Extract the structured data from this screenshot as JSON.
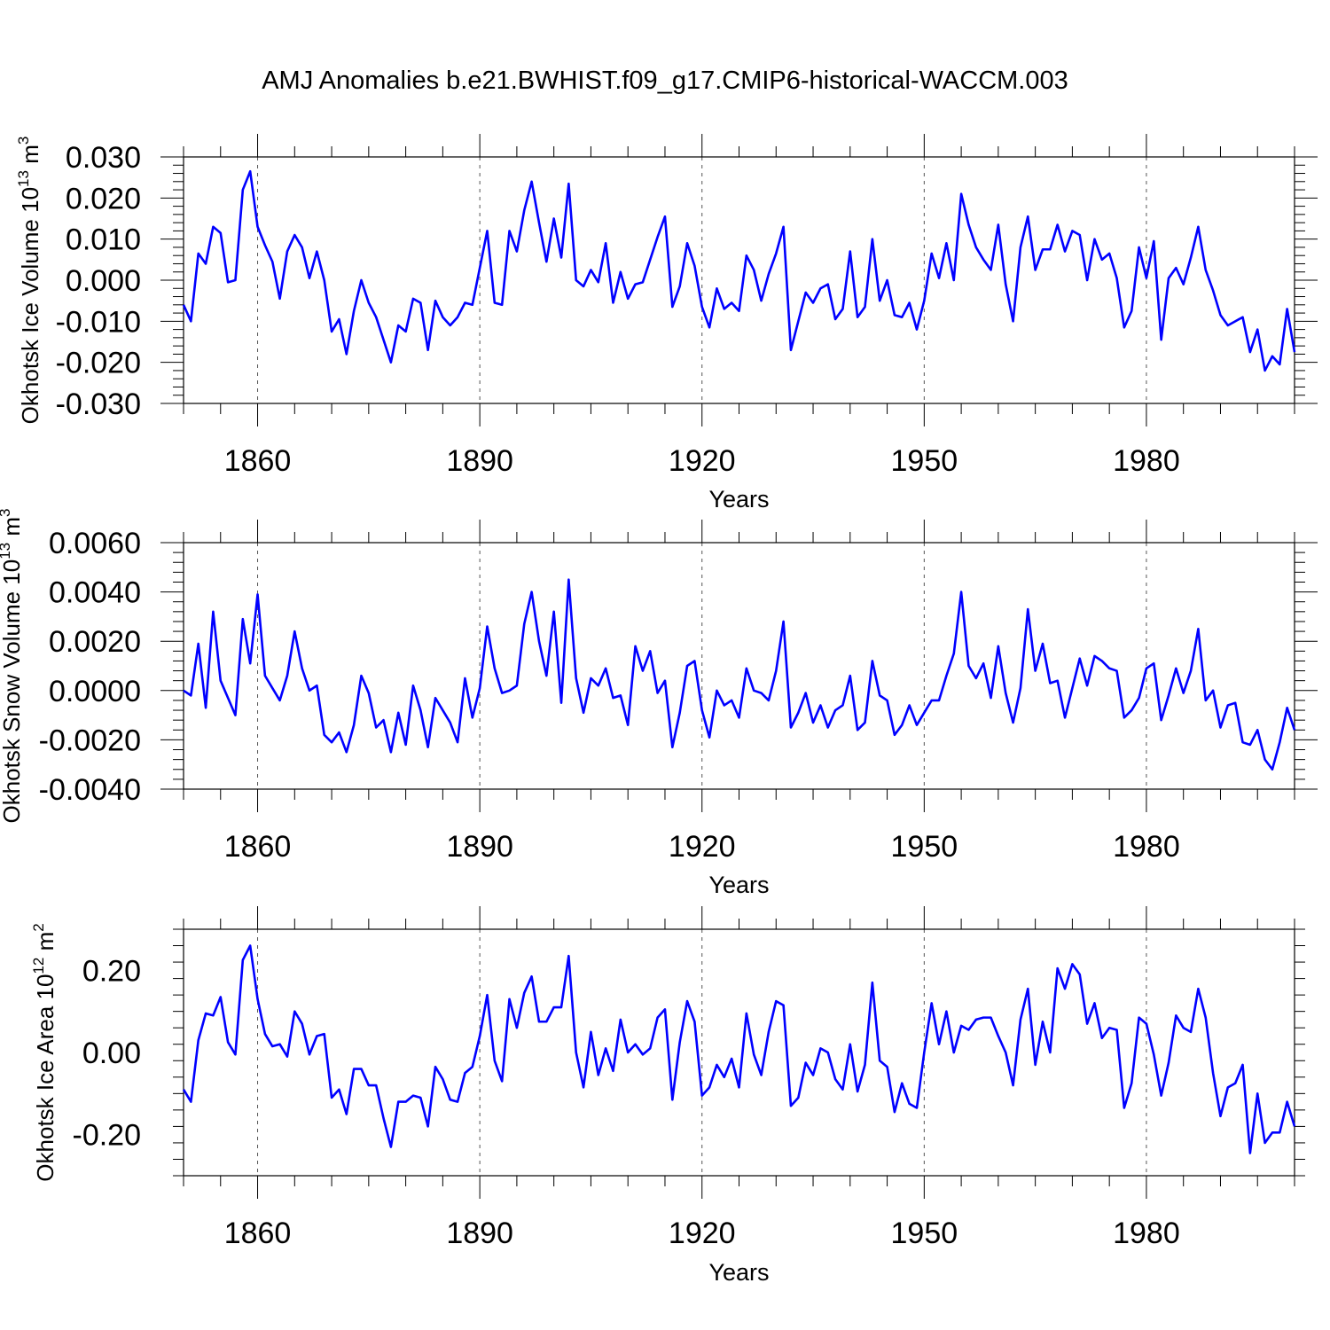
{
  "title": "AMJ Anomalies b.e21.BWHIST.f09_g17.CMIP6-historical-WACCM.003",
  "colors": {
    "line": "#0000ff",
    "axes": "#000000",
    "grid": "#555555"
  },
  "chart_data": [
    {
      "type": "line",
      "ylabel": {
        "text": "Okhotsk Ice Volume 10",
        "exp": "13",
        "unit": "m",
        "unit_exp": "3"
      },
      "xlabel": "Years",
      "xlim": [
        1850,
        2000
      ],
      "xticks": [
        1860,
        1890,
        1920,
        1950,
        1980
      ],
      "xtick_labels": [
        "1860",
        "1890",
        "1920",
        "1950",
        "1980"
      ],
      "xgrid": true,
      "ylim": [
        -0.03,
        0.03
      ],
      "yticks": [
        -0.03,
        -0.02,
        -0.01,
        0.0,
        0.01,
        0.02,
        0.03
      ],
      "ytick_labels": [
        "-0.030",
        "-0.020",
        "-0.010",
        "0.000",
        "0.010",
        "0.020",
        "0.030"
      ],
      "yminor": 0.002,
      "x_start": 1850,
      "values": [
        -0.006,
        -0.01,
        0.0065,
        0.004,
        0.013,
        0.0115,
        -0.0005,
        0.0,
        0.022,
        0.0265,
        0.013,
        0.0085,
        0.0045,
        -0.0045,
        0.007,
        0.011,
        0.008,
        0.0005,
        0.007,
        0.0,
        -0.0125,
        -0.0095,
        -0.018,
        -0.0075,
        0.0,
        -0.0055,
        -0.009,
        -0.0145,
        -0.02,
        -0.011,
        -0.0125,
        -0.0045,
        -0.0055,
        -0.017,
        -0.005,
        -0.009,
        -0.011,
        -0.009,
        -0.0055,
        -0.006,
        0.003,
        0.012,
        -0.0055,
        -0.006,
        0.012,
        0.007,
        0.017,
        0.024,
        0.014,
        0.0045,
        0.015,
        0.0055,
        0.0235,
        0.0,
        -0.0015,
        0.0025,
        -0.0005,
        0.009,
        -0.0055,
        0.002,
        -0.0045,
        -0.001,
        -0.0005,
        0.005,
        0.0105,
        0.0155,
        -0.0065,
        -0.0015,
        0.009,
        0.0035,
        -0.0065,
        -0.0115,
        -0.002,
        -0.007,
        -0.0055,
        -0.0075,
        0.006,
        0.0025,
        -0.005,
        0.0015,
        0.0065,
        0.013,
        -0.017,
        -0.01,
        -0.003,
        -0.0055,
        -0.002,
        -0.001,
        -0.0095,
        -0.007,
        0.007,
        -0.009,
        -0.0065,
        0.01,
        -0.005,
        0.0,
        -0.0085,
        -0.009,
        -0.0055,
        -0.012,
        -0.005,
        0.0065,
        0.0005,
        0.009,
        0.0,
        0.021,
        0.0135,
        0.008,
        0.005,
        0.0025,
        0.0135,
        -0.001,
        -0.01,
        0.008,
        0.0155,
        0.0025,
        0.0075,
        0.0075,
        0.0135,
        0.007,
        0.012,
        0.011,
        0.0,
        0.01,
        0.005,
        0.0065,
        0.0005,
        -0.0115,
        -0.0075,
        0.008,
        0.0005,
        0.0095,
        -0.0145,
        0.0005,
        0.003,
        -0.001,
        0.0055,
        0.013,
        0.0025,
        -0.0025,
        -0.0085,
        -0.011,
        -0.01,
        -0.009,
        -0.0175,
        -0.012,
        -0.022,
        -0.0185,
        -0.0205,
        -0.007,
        -0.0175
      ]
    },
    {
      "type": "line",
      "ylabel": {
        "text": "Okhotsk Snow Volume 10",
        "exp": "13",
        "unit": "m",
        "unit_exp": "3"
      },
      "xlabel": "Years",
      "xlim": [
        1850,
        2000
      ],
      "xticks": [
        1860,
        1890,
        1920,
        1950,
        1980
      ],
      "xtick_labels": [
        "1860",
        "1890",
        "1920",
        "1950",
        "1980"
      ],
      "xgrid": true,
      "ylim": [
        -0.004,
        0.006
      ],
      "yticks": [
        -0.004,
        -0.002,
        0.0,
        0.002,
        0.004,
        0.006
      ],
      "ytick_labels": [
        "-0.0040",
        "-0.0020",
        "0.0000",
        "0.0020",
        "0.0040",
        "0.0060"
      ],
      "yminor": 0.0004,
      "x_start": 1850,
      "values": [
        0.0,
        -0.0002,
        0.0019,
        -0.0007,
        0.0032,
        0.0004,
        -0.0003,
        -0.001,
        0.0029,
        0.0011,
        0.0039,
        0.0006,
        0.0001,
        -0.0004,
        0.0006,
        0.0024,
        0.0009,
        0.0,
        0.0002,
        -0.0018,
        -0.0021,
        -0.0017,
        -0.0025,
        -0.0014,
        0.0006,
        -0.0001,
        -0.0015,
        -0.0012,
        -0.0025,
        -0.0009,
        -0.0022,
        0.0002,
        -0.0008,
        -0.0023,
        -0.0003,
        -0.0008,
        -0.0013,
        -0.0021,
        0.0005,
        -0.0011,
        0.0001,
        0.0026,
        0.0009,
        -0.0001,
        0.0,
        0.0002,
        0.0027,
        0.004,
        0.002,
        0.0006,
        0.0032,
        -0.0005,
        0.0045,
        0.0005,
        -0.0009,
        0.0005,
        0.0002,
        0.0009,
        -0.0003,
        -0.0002,
        -0.0014,
        0.0018,
        0.0008,
        0.0016,
        -0.0001,
        0.0004,
        -0.0023,
        -0.0009,
        0.001,
        0.0012,
        -0.0008,
        -0.0019,
        0.0,
        -0.0006,
        -0.0004,
        -0.0011,
        0.0009,
        0.0,
        -0.0001,
        -0.0004,
        0.0008,
        0.0028,
        -0.0015,
        -0.0009,
        -0.0001,
        -0.0013,
        -0.0006,
        -0.0015,
        -0.0008,
        -0.0006,
        0.0006,
        -0.0016,
        -0.0013,
        0.0012,
        -0.0002,
        -0.0004,
        -0.0018,
        -0.0014,
        -0.0006,
        -0.0014,
        -0.0009,
        -0.0004,
        -0.0004,
        0.0006,
        0.0015,
        0.004,
        0.001,
        0.0005,
        0.0011,
        -0.0003,
        0.0018,
        -0.0001,
        -0.0013,
        0.0001,
        0.0033,
        0.0008,
        0.0019,
        0.0003,
        0.0004,
        -0.0011,
        0.0001,
        0.0013,
        0.0002,
        0.0014,
        0.0012,
        0.0009,
        0.0008,
        -0.0011,
        -0.0008,
        -0.0003,
        0.0009,
        0.0011,
        -0.0012,
        -0.0002,
        0.0009,
        -0.0001,
        0.0008,
        0.0025,
        -0.0004,
        0.0,
        -0.0015,
        -0.0006,
        -0.0005,
        -0.0021,
        -0.0022,
        -0.0016,
        -0.0028,
        -0.0032,
        -0.0021,
        -0.0007,
        -0.0016
      ]
    },
    {
      "type": "line",
      "ylabel": {
        "text": "Okhotsk Ice Area 10",
        "exp": "12",
        "unit": "m",
        "unit_exp": "2"
      },
      "xlabel": "Years",
      "xlim": [
        1850,
        2000
      ],
      "xticks": [
        1860,
        1890,
        1920,
        1950,
        1980
      ],
      "xtick_labels": [
        "1860",
        "1890",
        "1920",
        "1950",
        "1980"
      ],
      "xgrid": true,
      "ylim": [
        -0.3,
        0.3
      ],
      "yticks": [
        -0.2,
        0.0,
        0.2
      ],
      "ytick_labels": [
        "-0.20",
        "0.00",
        "0.20"
      ],
      "yminor": 0.04,
      "x_start": 1850,
      "values": [
        -0.09,
        -0.12,
        0.03,
        0.095,
        0.09,
        0.135,
        0.025,
        -0.005,
        0.225,
        0.26,
        0.13,
        0.045,
        0.015,
        0.02,
        -0.01,
        0.1,
        0.07,
        -0.005,
        0.04,
        0.045,
        -0.11,
        -0.09,
        -0.15,
        -0.04,
        -0.04,
        -0.08,
        -0.08,
        -0.16,
        -0.23,
        -0.12,
        -0.12,
        -0.105,
        -0.11,
        -0.18,
        -0.035,
        -0.065,
        -0.115,
        -0.12,
        -0.05,
        -0.035,
        0.04,
        0.14,
        -0.02,
        -0.07,
        0.13,
        0.06,
        0.145,
        0.185,
        0.075,
        0.075,
        0.11,
        0.11,
        0.235,
        0.0,
        -0.085,
        0.05,
        -0.055,
        0.01,
        -0.045,
        0.08,
        0.0,
        0.02,
        -0.005,
        0.01,
        0.085,
        0.105,
        -0.115,
        0.025,
        0.125,
        0.075,
        -0.105,
        -0.085,
        -0.03,
        -0.06,
        -0.015,
        -0.085,
        0.095,
        -0.005,
        -0.055,
        0.05,
        0.125,
        0.115,
        -0.13,
        -0.11,
        -0.025,
        -0.055,
        0.01,
        0.0,
        -0.065,
        -0.09,
        0.02,
        -0.095,
        -0.03,
        0.17,
        -0.02,
        -0.035,
        -0.145,
        -0.075,
        -0.125,
        -0.135,
        0.0,
        0.12,
        0.02,
        0.1,
        0.0,
        0.065,
        0.055,
        0.08,
        0.085,
        0.085,
        0.04,
        0.0,
        -0.08,
        0.08,
        0.155,
        -0.03,
        0.075,
        0.0,
        0.205,
        0.155,
        0.215,
        0.19,
        0.07,
        0.12,
        0.035,
        0.06,
        0.055,
        -0.135,
        -0.075,
        0.085,
        0.07,
        -0.005,
        -0.105,
        -0.025,
        0.09,
        0.06,
        0.05,
        0.155,
        0.085,
        -0.05,
        -0.155,
        -0.085,
        -0.075,
        -0.03,
        -0.245,
        -0.1,
        -0.22,
        -0.195,
        -0.195,
        -0.12,
        -0.18
      ]
    }
  ]
}
